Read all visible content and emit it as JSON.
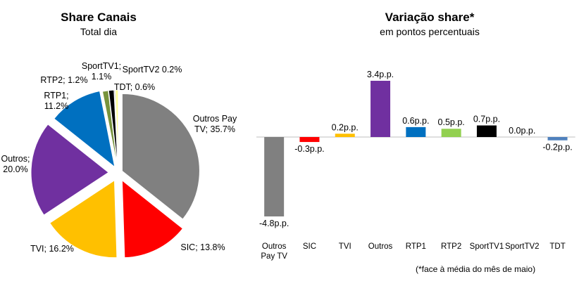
{
  "chart_data": [
    {
      "type": "pie",
      "title": "Share Canais",
      "subtitle": "Total dia",
      "slices": [
        {
          "name": "Outros Pay TV",
          "value": 35.7,
          "label": [
            "Outros Pay",
            "TV; 35.7%"
          ],
          "color": "#808080"
        },
        {
          "name": "SIC",
          "value": 13.8,
          "label": [
            "SIC; 13.8%"
          ],
          "color": "#ff0000"
        },
        {
          "name": "TVI",
          "value": 16.2,
          "label": [
            "TVI; 16.2%"
          ],
          "color": "#ffc000"
        },
        {
          "name": "Outros",
          "value": 20.0,
          "label": [
            "Outros;",
            "20.0%"
          ],
          "color": "#7030a0"
        },
        {
          "name": "RTP1",
          "value": 11.2,
          "label": [
            "RTP1;",
            "11.2%"
          ],
          "color": "#0070c0"
        },
        {
          "name": "RTP2",
          "value": 1.2,
          "label": [
            "RTP2; 1.2%"
          ],
          "color": "#77933c"
        },
        {
          "name": "SportTV1",
          "value": 1.1,
          "label": [
            "SportTV1;",
            "1.1%"
          ],
          "color": "#000000"
        },
        {
          "name": "SportTV2",
          "value": 0.2,
          "label": [
            "SportTV2 0.2%"
          ],
          "color": "#7f7f7f"
        },
        {
          "name": "TDT",
          "value": 0.6,
          "label": [
            "TDT; 0.6%"
          ],
          "color": "#ffff99"
        }
      ]
    },
    {
      "type": "bar",
      "title": "Variação share*",
      "subtitle": "em pontos percentuais",
      "note": "(*face à média do mês de maio)",
      "ylim": [
        -4.8,
        3.4
      ],
      "categories": [
        [
          "Outros",
          "Pay TV"
        ],
        [
          "SIC"
        ],
        [
          "TVI"
        ],
        [
          "Outros"
        ],
        [
          "RTP1"
        ],
        [
          "RTP2"
        ],
        [
          "SportTV1"
        ],
        [
          "SportTV2"
        ],
        [
          "TDT"
        ]
      ],
      "values": [
        -4.8,
        -0.3,
        0.2,
        3.4,
        0.6,
        0.5,
        0.7,
        0.0,
        -0.2
      ],
      "value_labels": [
        "-4.8p.p.",
        "-0.3p.p.",
        "0.2p.p.",
        "3.4p.p.",
        "0.6p.p.",
        "0.5p.p.",
        "0.7p.p.",
        "0.0p.p.",
        "-0.2p.p."
      ],
      "colors": [
        "#808080",
        "#ff0000",
        "#ffc000",
        "#7030a0",
        "#0070c0",
        "#92d050",
        "#000000",
        "#7f7f7f",
        "#4f81bd"
      ]
    }
  ]
}
